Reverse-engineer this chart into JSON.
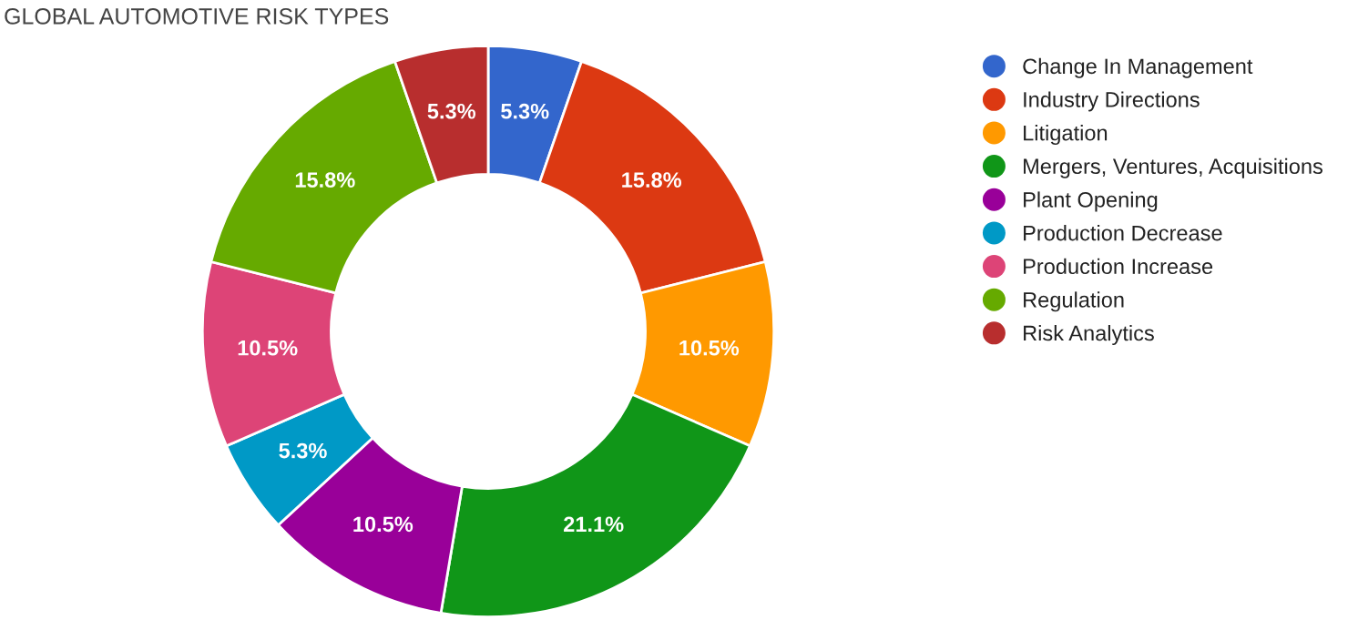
{
  "chart_data": {
    "type": "donut",
    "title": "GLOBAL AUTOMOTIVE RISK TYPES",
    "categories": [
      "Change In Management",
      "Industry Directions",
      "Litigation",
      "Mergers, Ventures, Acquisitions",
      "Plant Opening",
      "Production Decrease",
      "Production Increase",
      "Regulation",
      "Risk Analytics"
    ],
    "values": [
      5.3,
      15.8,
      10.5,
      21.1,
      10.5,
      5.3,
      10.5,
      15.8,
      5.3
    ],
    "colors": [
      "#3366cc",
      "#dc3912",
      "#ff9900",
      "#109618",
      "#990099",
      "#0099c6",
      "#dd4477",
      "#66aa00",
      "#b82e2e"
    ],
    "value_labels": [
      "5.3%",
      "15.8%",
      "10.5%",
      "21.1%",
      "10.5%",
      "5.3%",
      "10.5%",
      "15.8%",
      "5.3%"
    ],
    "legend": "right"
  }
}
